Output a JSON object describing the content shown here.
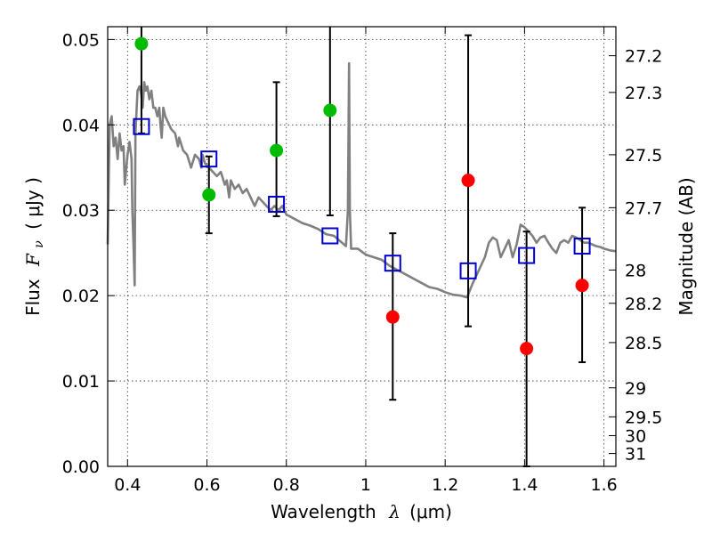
{
  "chart_data": {
    "type": "scatter",
    "xlabel": "Wavelength",
    "xlabel_symbol": "λ",
    "xlabel_unit": "(μm)",
    "ylabel": "Flux",
    "ylabel_symbol": "F",
    "ylabel_subscript": "ν",
    "ylabel_unit": "( μJy )",
    "y2label": "Magnitude (AB)",
    "xlim": [
      0.35,
      1.63
    ],
    "ylim": [
      0.0,
      0.0515
    ],
    "grid": true,
    "x_ticks": [
      0.4,
      0.6,
      0.8,
      1.0,
      1.2,
      1.4,
      1.6
    ],
    "x_tick_labels": [
      "0.4",
      "0.6",
      "0.8",
      "1",
      "1.2",
      "1.4",
      "1.6"
    ],
    "y_ticks": [
      0.0,
      0.01,
      0.02,
      0.03,
      0.04,
      0.05
    ],
    "y_tick_labels": [
      "0.00",
      "0.01",
      "0.02",
      "0.03",
      "0.04",
      "0.05"
    ],
    "y2_ticks": [
      {
        "label": "27.2",
        "flux": 0.0481
      },
      {
        "label": "27.3",
        "flux": 0.0438
      },
      {
        "label": "27.5",
        "flux": 0.0365
      },
      {
        "label": "27.7",
        "flux": 0.0303
      },
      {
        "label": "28",
        "flux": 0.023
      },
      {
        "label": "28.2",
        "flux": 0.0191
      },
      {
        "label": "28.5",
        "flux": 0.0145
      },
      {
        "label": "29",
        "flux": 0.0092
      },
      {
        "label": "29.5",
        "flux": 0.0058
      },
      {
        "label": "30",
        "flux": 0.0036
      },
      {
        "label": "31",
        "flux": 0.0015
      }
    ],
    "colors": {
      "detection": "#00bb00",
      "upper_limit": "#ff0000",
      "model_box": "#0000cc",
      "model_line": "#808080",
      "error_bar": "#000000"
    },
    "points": [
      {
        "x": 0.435,
        "y": 0.0495,
        "color": "green",
        "err_lo": 0.0105,
        "err_hi": 0.004
      },
      {
        "x": 0.605,
        "y": 0.0318,
        "color": "green",
        "err_lo": 0.0045,
        "err_hi": 0.0045
      },
      {
        "x": 0.775,
        "y": 0.037,
        "color": "green",
        "err_lo": 0.0077,
        "err_hi": 0.008
      },
      {
        "x": 0.91,
        "y": 0.0417,
        "color": "green",
        "err_lo": 0.0123,
        "err_hi": 0.0098
      },
      {
        "x": 1.068,
        "y": 0.0175,
        "color": "red",
        "err_lo": 0.0097,
        "err_hi": 0.0098
      },
      {
        "x": 1.258,
        "y": 0.0335,
        "color": "red",
        "err_lo": 0.0171,
        "err_hi": 0.017
      },
      {
        "x": 1.405,
        "y": 0.0138,
        "color": "red",
        "err_lo": 0.0138,
        "err_hi": 0.0137
      },
      {
        "x": 1.545,
        "y": 0.0212,
        "color": "red",
        "err_lo": 0.009,
        "err_hi": 0.0091
      }
    ],
    "model_points": [
      {
        "x": 0.435,
        "y": 0.0398
      },
      {
        "x": 0.605,
        "y": 0.036
      },
      {
        "x": 0.775,
        "y": 0.0307
      },
      {
        "x": 0.91,
        "y": 0.027
      },
      {
        "x": 1.068,
        "y": 0.0238
      },
      {
        "x": 1.258,
        "y": 0.0229
      },
      {
        "x": 1.405,
        "y": 0.0247
      },
      {
        "x": 1.545,
        "y": 0.0258
      }
    ],
    "model_spectrum": [
      [
        0.35,
        0.026
      ],
      [
        0.355,
        0.04
      ],
      [
        0.36,
        0.041
      ],
      [
        0.365,
        0.0375
      ],
      [
        0.37,
        0.0385
      ],
      [
        0.375,
        0.036
      ],
      [
        0.38,
        0.039
      ],
      [
        0.385,
        0.037
      ],
      [
        0.39,
        0.0375
      ],
      [
        0.393,
        0.033
      ],
      [
        0.397,
        0.035
      ],
      [
        0.4,
        0.0365
      ],
      [
        0.405,
        0.038
      ],
      [
        0.41,
        0.036
      ],
      [
        0.412,
        0.03
      ],
      [
        0.415,
        0.026
      ],
      [
        0.418,
        0.0212
      ],
      [
        0.42,
        0.039
      ],
      [
        0.425,
        0.044
      ],
      [
        0.43,
        0.0445
      ],
      [
        0.435,
        0.0435
      ],
      [
        0.438,
        0.042
      ],
      [
        0.442,
        0.045
      ],
      [
        0.446,
        0.044
      ],
      [
        0.45,
        0.0445
      ],
      [
        0.455,
        0.043
      ],
      [
        0.46,
        0.044
      ],
      [
        0.465,
        0.042
      ],
      [
        0.47,
        0.042
      ],
      [
        0.475,
        0.041
      ],
      [
        0.48,
        0.042
      ],
      [
        0.483,
        0.04
      ],
      [
        0.486,
        0.0385
      ],
      [
        0.49,
        0.042
      ],
      [
        0.495,
        0.041
      ],
      [
        0.5,
        0.0405
      ],
      [
        0.51,
        0.0395
      ],
      [
        0.52,
        0.039
      ],
      [
        0.527,
        0.0375
      ],
      [
        0.53,
        0.0385
      ],
      [
        0.54,
        0.037
      ],
      [
        0.55,
        0.0365
      ],
      [
        0.56,
        0.035
      ],
      [
        0.57,
        0.0365
      ],
      [
        0.58,
        0.036
      ],
      [
        0.586,
        0.035
      ],
      [
        0.589,
        0.0365
      ],
      [
        0.595,
        0.0355
      ],
      [
        0.605,
        0.035
      ],
      [
        0.615,
        0.0345
      ],
      [
        0.625,
        0.034
      ],
      [
        0.635,
        0.0345
      ],
      [
        0.645,
        0.033
      ],
      [
        0.65,
        0.0335
      ],
      [
        0.656,
        0.0315
      ],
      [
        0.66,
        0.0335
      ],
      [
        0.67,
        0.0325
      ],
      [
        0.68,
        0.033
      ],
      [
        0.69,
        0.032
      ],
      [
        0.7,
        0.0325
      ],
      [
        0.71,
        0.0315
      ],
      [
        0.72,
        0.0305
      ],
      [
        0.73,
        0.0315
      ],
      [
        0.74,
        0.031
      ],
      [
        0.75,
        0.0305
      ],
      [
        0.76,
        0.03
      ],
      [
        0.77,
        0.0305
      ],
      [
        0.78,
        0.03
      ],
      [
        0.79,
        0.0305
      ],
      [
        0.8,
        0.0295
      ],
      [
        0.82,
        0.029
      ],
      [
        0.84,
        0.0285
      ],
      [
        0.86,
        0.0282
      ],
      [
        0.88,
        0.0278
      ],
      [
        0.9,
        0.0272
      ],
      [
        0.92,
        0.027
      ],
      [
        0.94,
        0.0262
      ],
      [
        0.95,
        0.0258
      ],
      [
        0.955,
        0.03
      ],
      [
        0.958,
        0.0472
      ],
      [
        0.96,
        0.03
      ],
      [
        0.963,
        0.0255
      ],
      [
        0.98,
        0.0255
      ],
      [
        1.0,
        0.0248
      ],
      [
        1.02,
        0.0245
      ],
      [
        1.04,
        0.0242
      ],
      [
        1.06,
        0.0235
      ],
      [
        1.08,
        0.023
      ],
      [
        1.1,
        0.0225
      ],
      [
        1.12,
        0.022
      ],
      [
        1.14,
        0.0215
      ],
      [
        1.16,
        0.021
      ],
      [
        1.18,
        0.0208
      ],
      [
        1.2,
        0.0204
      ],
      [
        1.22,
        0.0201
      ],
      [
        1.24,
        0.02
      ],
      [
        1.255,
        0.0198
      ],
      [
        1.27,
        0.0215
      ],
      [
        1.285,
        0.023
      ],
      [
        1.3,
        0.0245
      ],
      [
        1.31,
        0.0262
      ],
      [
        1.32,
        0.0268
      ],
      [
        1.33,
        0.0265
      ],
      [
        1.34,
        0.0245
      ],
      [
        1.35,
        0.0255
      ],
      [
        1.36,
        0.0265
      ],
      [
        1.37,
        0.0245
      ],
      [
        1.38,
        0.026
      ],
      [
        1.39,
        0.0283
      ],
      [
        1.4,
        0.028
      ],
      [
        1.41,
        0.0275
      ],
      [
        1.42,
        0.027
      ],
      [
        1.43,
        0.0262
      ],
      [
        1.44,
        0.0268
      ],
      [
        1.45,
        0.027
      ],
      [
        1.46,
        0.0262
      ],
      [
        1.47,
        0.0255
      ],
      [
        1.48,
        0.025
      ],
      [
        1.49,
        0.0262
      ],
      [
        1.5,
        0.0265
      ],
      [
        1.51,
        0.0262
      ],
      [
        1.52,
        0.027
      ],
      [
        1.53,
        0.0268
      ],
      [
        1.54,
        0.0265
      ],
      [
        1.55,
        0.0262
      ],
      [
        1.56,
        0.0262
      ],
      [
        1.57,
        0.026
      ],
      [
        1.58,
        0.0258
      ],
      [
        1.59,
        0.0257
      ],
      [
        1.6,
        0.0255
      ],
      [
        1.615,
        0.0253
      ],
      [
        1.63,
        0.0252
      ]
    ]
  }
}
